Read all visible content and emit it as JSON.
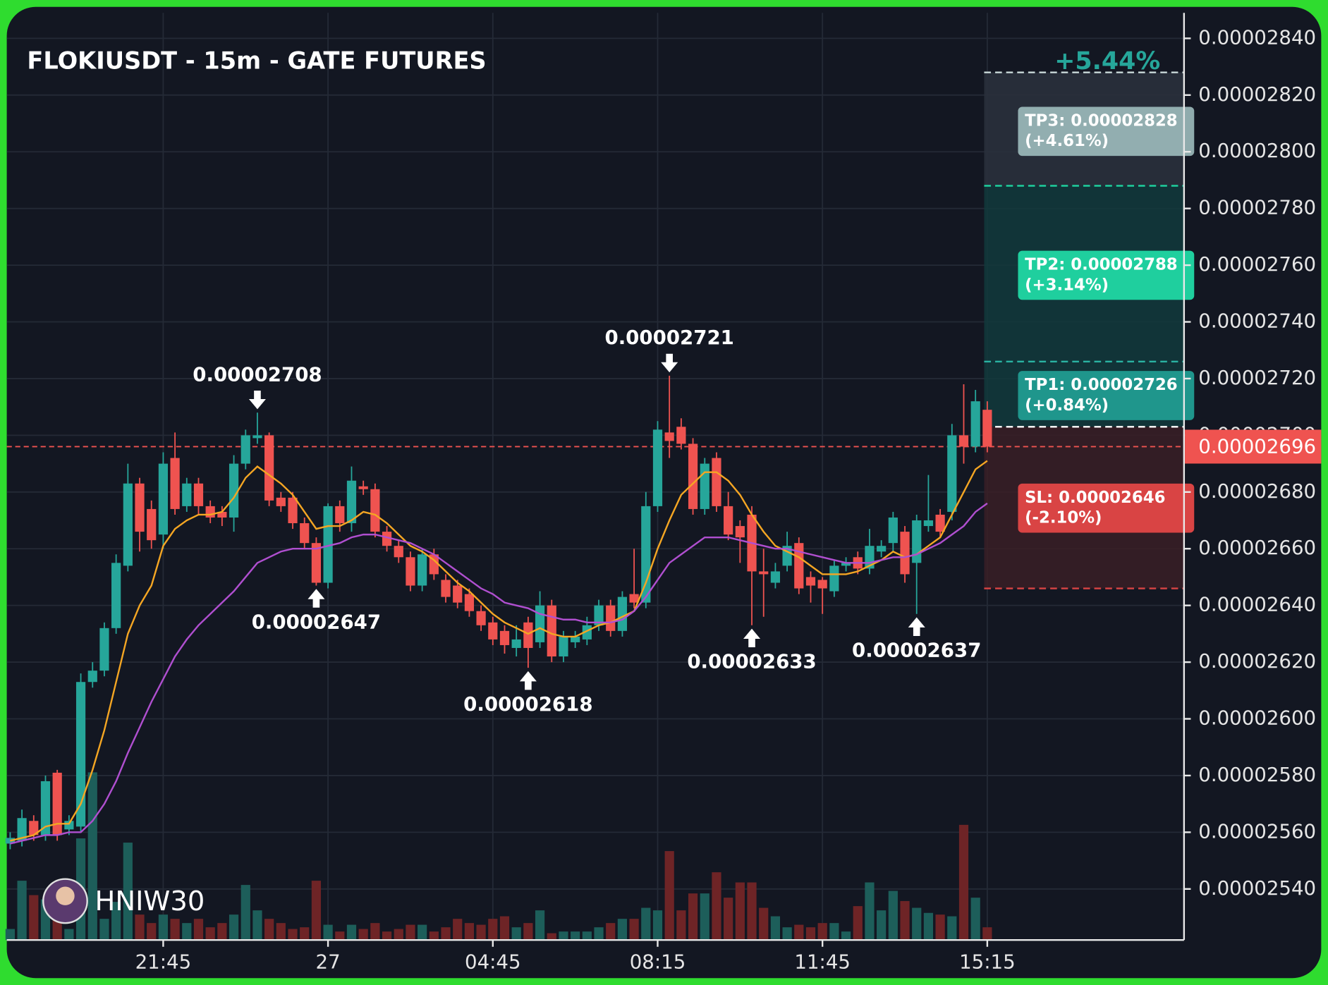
{
  "chart_data": {
    "type": "candlestick",
    "title": "FLOKIUSDT - 15m - GATE FUTURES",
    "watermark": "HNIW30",
    "categories": [
      null,
      null,
      null,
      null,
      null,
      null,
      null,
      null,
      null,
      null,
      null,
      null,
      null,
      "21:45",
      null,
      null,
      null,
      null,
      null,
      null,
      null,
      null,
      null,
      null,
      null,
      null,
      null,
      "27",
      null,
      null,
      null,
      null,
      null,
      null,
      null,
      null,
      null,
      null,
      null,
      null,
      null,
      "04:45",
      null,
      null,
      null,
      null,
      null,
      null,
      null,
      null,
      null,
      null,
      null,
      null,
      null,
      "08:15",
      null,
      null,
      null,
      null,
      null,
      null,
      null,
      null,
      null,
      null,
      null,
      null,
      null,
      "11:45",
      null,
      null,
      null,
      null,
      null,
      null,
      null,
      null,
      null,
      null,
      null,
      null,
      null,
      "15:15"
    ],
    "open": [
      2.556e-05,
      2.557e-05,
      2.564e-05,
      2.559e-05,
      2.581e-05,
      2.561e-05,
      2.562e-05,
      2.613e-05,
      2.617e-05,
      2.632e-05,
      2.654e-05,
      2.683e-05,
      2.674e-05,
      2.665e-05,
      2.692e-05,
      2.675e-05,
      2.683e-05,
      2.675e-05,
      2.673e-05,
      2.671e-05,
      2.69e-05,
      2.699e-05,
      2.7e-05,
      2.678e-05,
      2.678e-05,
      2.669e-05,
      2.662e-05,
      2.648e-05,
      2.675e-05,
      2.669e-05,
      2.682e-05,
      2.681e-05,
      2.666e-05,
      2.661e-05,
      2.657e-05,
      2.647e-05,
      2.658e-05,
      2.649e-05,
      2.647e-05,
      2.644e-05,
      2.638e-05,
      2.634e-05,
      2.631e-05,
      2.625e-05,
      2.634e-05,
      2.627e-05,
      2.64e-05,
      2.622e-05,
      2.627e-05,
      2.628e-05,
      2.633e-05,
      2.64e-05,
      2.631e-05,
      2.644e-05,
      2.641e-05,
      2.675e-05,
      2.701e-05,
      2.703e-05,
      2.697e-05,
      2.674e-05,
      2.692e-05,
      2.675e-05,
      2.668e-05,
      2.672e-05,
      2.652e-05,
      2.648e-05,
      2.654e-05,
      2.662e-05,
      2.65e-05,
      2.649e-05,
      2.645e-05,
      2.654e-05,
      2.657e-05,
      2.653e-05,
      2.659e-05,
      2.662e-05,
      2.666e-05,
      2.655e-05,
      2.668e-05,
      2.672e-05,
      2.673e-05,
      2.7e-05,
      2.696e-05,
      2.709e-05
    ],
    "close": [
      2.558e-05,
      2.565e-05,
      2.559e-05,
      2.578e-05,
      2.559e-05,
      2.564e-05,
      2.613e-05,
      2.617e-05,
      2.632e-05,
      2.655e-05,
      2.683e-05,
      2.666e-05,
      2.663e-05,
      2.69e-05,
      2.674e-05,
      2.683e-05,
      2.675e-05,
      2.671e-05,
      2.671e-05,
      2.69e-05,
      2.7e-05,
      2.7e-05,
      2.677e-05,
      2.675e-05,
      2.669e-05,
      2.662e-05,
      2.648e-05,
      2.675e-05,
      2.669e-05,
      2.684e-05,
      2.681e-05,
      2.666e-05,
      2.661e-05,
      2.657e-05,
      2.647e-05,
      2.658e-05,
      2.651e-05,
      2.643e-05,
      2.641e-05,
      2.638e-05,
      2.633e-05,
      2.628e-05,
      2.626e-05,
      2.628e-05,
      2.625e-05,
      2.64e-05,
      2.622e-05,
      2.629e-05,
      2.629e-05,
      2.633e-05,
      2.64e-05,
      2.631e-05,
      2.643e-05,
      2.641e-05,
      2.675e-05,
      2.702e-05,
      2.698e-05,
      2.697e-05,
      2.674e-05,
      2.69e-05,
      2.675e-05,
      2.665e-05,
      2.664e-05,
      2.652e-05,
      2.651e-05,
      2.652e-05,
      2.661e-05,
      2.646e-05,
      2.647e-05,
      2.646e-05,
      2.654e-05,
      2.655e-05,
      2.653e-05,
      2.661e-05,
      2.661e-05,
      2.671e-05,
      2.651e-05,
      2.67e-05,
      2.67e-05,
      2.666e-05,
      2.7e-05,
      2.696e-05,
      2.712e-05,
      2.696e-05
    ],
    "high": [
      2.56e-05,
      2.568e-05,
      2.566e-05,
      2.58e-05,
      2.582e-05,
      2.566e-05,
      2.616e-05,
      2.62e-05,
      2.634e-05,
      2.658e-05,
      2.69e-05,
      2.685e-05,
      2.677e-05,
      2.694e-05,
      2.701e-05,
      2.685e-05,
      2.685e-05,
      2.677e-05,
      2.675e-05,
      2.693e-05,
      2.702e-05,
      2.708e-05,
      2.701e-05,
      2.68e-05,
      2.68e-05,
      2.671e-05,
      2.664e-05,
      2.676e-05,
      2.677e-05,
      2.689e-05,
      2.684e-05,
      2.683e-05,
      2.668e-05,
      2.663e-05,
      2.659e-05,
      2.66e-05,
      2.66e-05,
      2.651e-05,
      2.649e-05,
      2.646e-05,
      2.64e-05,
      2.636e-05,
      2.633e-05,
      2.633e-05,
      2.636e-05,
      2.645e-05,
      2.642e-05,
      2.631e-05,
      2.631e-05,
      2.636e-05,
      2.642e-05,
      2.642e-05,
      2.645e-05,
      2.66e-05,
      2.68e-05,
      2.705e-05,
      2.721e-05,
      2.706e-05,
      2.699e-05,
      2.692e-05,
      2.694e-05,
      2.68e-05,
      2.67e-05,
      2.675e-05,
      2.66e-05,
      2.655e-05,
      2.666e-05,
      2.664e-05,
      2.652e-05,
      2.65e-05,
      2.656e-05,
      2.657e-05,
      2.659e-05,
      2.667e-05,
      2.663e-05,
      2.673e-05,
      2.668e-05,
      2.672e-05,
      2.686e-05,
      2.674e-05,
      2.704e-05,
      2.718e-05,
      2.716e-05,
      2.712e-05
    ],
    "low": [
      2.554e-05,
      2.555e-05,
      2.557e-05,
      2.557e-05,
      2.557e-05,
      2.559e-05,
      2.56e-05,
      2.611e-05,
      2.615e-05,
      2.63e-05,
      2.652e-05,
      2.659e-05,
      2.66e-05,
      2.66e-05,
      2.672e-05,
      2.673e-05,
      2.672e-05,
      2.669e-05,
      2.668e-05,
      2.666e-05,
      2.688e-05,
      2.697e-05,
      2.675e-05,
      2.673e-05,
      2.667e-05,
      2.66e-05,
      2.647e-05,
      2.646e-05,
      2.666e-05,
      2.666e-05,
      2.679e-05,
      2.664e-05,
      2.659e-05,
      2.655e-05,
      2.645e-05,
      2.645e-05,
      2.649e-05,
      2.641e-05,
      2.639e-05,
      2.636e-05,
      2.631e-05,
      2.626e-05,
      2.623e-05,
      2.622e-05,
      2.618e-05,
      2.625e-05,
      2.62e-05,
      2.62e-05,
      2.625e-05,
      2.626e-05,
      2.631e-05,
      2.629e-05,
      2.629e-05,
      2.639e-05,
      2.639e-05,
      2.673e-05,
      2.692e-05,
      2.695e-05,
      2.672e-05,
      2.672e-05,
      2.673e-05,
      2.663e-05,
      2.655e-05,
      2.633e-05,
      2.636e-05,
      2.646e-05,
      2.652e-05,
      2.644e-05,
      2.641e-05,
      2.637e-05,
      2.643e-05,
      2.652e-05,
      2.651e-05,
      2.651e-05,
      2.657e-05,
      2.659e-05,
      2.648e-05,
      2.637e-05,
      2.666e-05,
      2.664e-05,
      2.67e-05,
      2.69e-05,
      2.694e-05,
      2.694e-05
    ],
    "volume": [
      13,
      70,
      53,
      48,
      45,
      13,
      120,
      198,
      25,
      45,
      115,
      30,
      20,
      30,
      25,
      20,
      25,
      15,
      20,
      30,
      65,
      35,
      25,
      20,
      13,
      15,
      70,
      18,
      10,
      18,
      13,
      20,
      10,
      13,
      18,
      18,
      10,
      15,
      25,
      20,
      18,
      25,
      28,
      15,
      20,
      35,
      8,
      10,
      10,
      10,
      15,
      20,
      25,
      25,
      38,
      35,
      105,
      35,
      55,
      55,
      80,
      50,
      68,
      68,
      38,
      28,
      15,
      18,
      15,
      20,
      20,
      10,
      40,
      68,
      35,
      58,
      46,
      38,
      32,
      30,
      28,
      136,
      50,
      15
    ],
    "volume_ylim": [
      0,
      1095
    ],
    "up_color": "#26a69a",
    "down_color": "#ef5350",
    "up_volume_color": "#1d5e5a",
    "down_volume_color": "#6e2426",
    "lines": [
      {
        "color": "#f5a623",
        "values": [
          2.557e-05,
          2.558e-05,
          2.559e-05,
          2.562e-05,
          2.563e-05,
          2.563e-05,
          2.57e-05,
          2.582e-05,
          2.596e-05,
          2.613e-05,
          2.63e-05,
          2.64e-05,
          2.647e-05,
          2.661e-05,
          2.667e-05,
          2.67e-05,
          2.672e-05,
          2.672e-05,
          2.673e-05,
          2.678e-05,
          2.685e-05,
          2.689e-05,
          2.686e-05,
          2.683e-05,
          2.679e-05,
          2.673e-05,
          2.667e-05,
          2.668e-05,
          2.668e-05,
          2.67e-05,
          2.673e-05,
          2.672e-05,
          2.669e-05,
          2.665e-05,
          2.661e-05,
          2.659e-05,
          2.656e-05,
          2.652e-05,
          2.648e-05,
          2.645e-05,
          2.641e-05,
          2.637e-05,
          2.634e-05,
          2.632e-05,
          2.63e-05,
          2.632e-05,
          2.63e-05,
          2.629e-05,
          2.629e-05,
          2.631e-05,
          2.633e-05,
          2.634e-05,
          2.636e-05,
          2.638e-05,
          2.648e-05,
          2.66e-05,
          2.67e-05,
          2.679e-05,
          2.683e-05,
          2.687e-05,
          2.687e-05,
          2.684e-05,
          2.679e-05,
          2.672e-05,
          2.666e-05,
          2.661e-05,
          2.659e-05,
          2.657e-05,
          2.654e-05,
          2.651e-05,
          2.651e-05,
          2.651e-05,
          2.652e-05,
          2.654e-05,
          2.656e-05,
          2.659e-05,
          2.657e-05,
          2.658e-05,
          2.661e-05,
          2.664e-05,
          2.672e-05,
          2.68e-05,
          2.688e-05,
          2.691e-05
        ]
      },
      {
        "color": "#b04fd0",
        "values": [
          2.556e-05,
          2.557e-05,
          2.558e-05,
          2.559e-05,
          2.559e-05,
          2.56e-05,
          2.56e-05,
          2.564e-05,
          2.57e-05,
          2.578e-05,
          2.588e-05,
          2.597e-05,
          2.606e-05,
          2.614e-05,
          2.622e-05,
          2.628e-05,
          2.633e-05,
          2.637e-05,
          2.641e-05,
          2.645e-05,
          2.65e-05,
          2.655e-05,
          2.657e-05,
          2.659e-05,
          2.66e-05,
          2.66e-05,
          2.66e-05,
          2.661e-05,
          2.662e-05,
          2.664e-05,
          2.665e-05,
          2.665e-05,
          2.664e-05,
          2.663e-05,
          2.662e-05,
          2.66e-05,
          2.658e-05,
          2.655e-05,
          2.652e-05,
          2.649e-05,
          2.646e-05,
          2.644e-05,
          2.641e-05,
          2.64e-05,
          2.639e-05,
          2.637e-05,
          2.636e-05,
          2.635e-05,
          2.635e-05,
          2.634e-05,
          2.634e-05,
          2.634e-05,
          2.635e-05,
          2.638e-05,
          2.643e-05,
          2.649e-05,
          2.655e-05,
          2.658e-05,
          2.661e-05,
          2.664e-05,
          2.664e-05,
          2.664e-05,
          2.663e-05,
          2.662e-05,
          2.661e-05,
          2.66e-05,
          2.66e-05,
          2.659e-05,
          2.658e-05,
          2.657e-05,
          2.656e-05,
          2.655e-05,
          2.655e-05,
          2.655e-05,
          2.656e-05,
          2.657e-05,
          2.657e-05,
          2.658e-05,
          2.66e-05,
          2.662e-05,
          2.665e-05,
          2.668e-05,
          2.673e-05,
          2.676e-05
        ]
      }
    ],
    "ylim": [
      2.522e-05,
      2.849e-05
    ],
    "yticks": [
      {
        "value": 2.54e-05,
        "label": "0.00002540"
      },
      {
        "value": 2.56e-05,
        "label": "0.00002560"
      },
      {
        "value": 2.58e-05,
        "label": "0.00002580"
      },
      {
        "value": 2.6e-05,
        "label": "0.00002600"
      },
      {
        "value": 2.62e-05,
        "label": "0.00002620"
      },
      {
        "value": 2.64e-05,
        "label": "0.00002640"
      },
      {
        "value": 2.66e-05,
        "label": "0.00002660"
      },
      {
        "value": 2.68e-05,
        "label": "0.00002680"
      },
      {
        "value": 2.7e-05,
        "label": "0.00002700"
      },
      {
        "value": 2.72e-05,
        "label": "0.00002720"
      },
      {
        "value": 2.74e-05,
        "label": "0.00002740"
      },
      {
        "value": 2.76e-05,
        "label": "0.00002760"
      },
      {
        "value": 2.78e-05,
        "label": "0.00002780"
      },
      {
        "value": 2.8e-05,
        "label": "0.00002800"
      },
      {
        "value": 2.82e-05,
        "label": "0.00002820"
      },
      {
        "value": 2.84e-05,
        "label": "0.00002840"
      }
    ],
    "grid": true,
    "annotations": [
      {
        "label": "0.00002708",
        "value": 2.708e-05,
        "at": 21,
        "direction": "down"
      },
      {
        "label": "0.00002647",
        "value": 2.647e-05,
        "at": 26,
        "direction": "up"
      },
      {
        "label": "0.00002618",
        "value": 2.618e-05,
        "at": 44,
        "direction": "up"
      },
      {
        "label": "0.00002721",
        "value": 2.721e-05,
        "at": 56,
        "direction": "down"
      },
      {
        "label": "0.00002633",
        "value": 2.633e-05,
        "at": 63,
        "direction": "up"
      },
      {
        "label": "0.00002637",
        "value": 2.637e-05,
        "at": 77,
        "direction": "up"
      }
    ],
    "last_price": {
      "value": 2.696e-05,
      "label": "0.00002696",
      "color": "#ef5350"
    },
    "trade": {
      "entry": 2.703e-05,
      "total": "+5.44%",
      "targets": [
        {
          "value": 2.726e-05,
          "label": "TP1: 0.00002726",
          "pct": "(+0.84%)",
          "color": "#1f968c"
        },
        {
          "value": 2.788e-05,
          "label": "TP2: 0.00002788",
          "pct": "(+3.14%)",
          "color": "#1fcf9e"
        },
        {
          "value": 2.828e-05,
          "label": "TP3: 0.00002828",
          "pct": "(+4.61%)",
          "color": "#a6c6c6"
        }
      ],
      "stop": {
        "value": 2.646e-05,
        "label": "SL: 0.00002646",
        "pct": "(-2.10%)",
        "color": "#d94444"
      }
    }
  }
}
